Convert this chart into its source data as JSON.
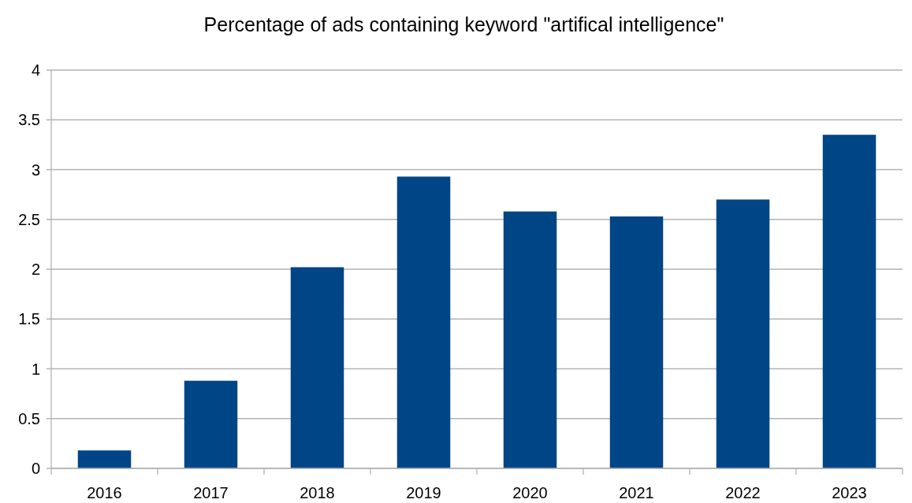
{
  "chart_data": {
    "type": "bar",
    "title": "Percentage of ads containing keyword \"artifical intelligence\"",
    "categories": [
      "2016",
      "2017",
      "2018",
      "2019",
      "2020",
      "2021",
      "2022",
      "2023"
    ],
    "values": [
      0.18,
      0.88,
      2.02,
      2.93,
      2.58,
      2.53,
      2.7,
      3.35
    ],
    "color": "#004586",
    "ylim": [
      0,
      4
    ],
    "yticks": [
      0,
      0.5,
      1,
      1.5,
      2,
      2.5,
      3,
      3.5,
      4
    ],
    "grid": "y"
  }
}
